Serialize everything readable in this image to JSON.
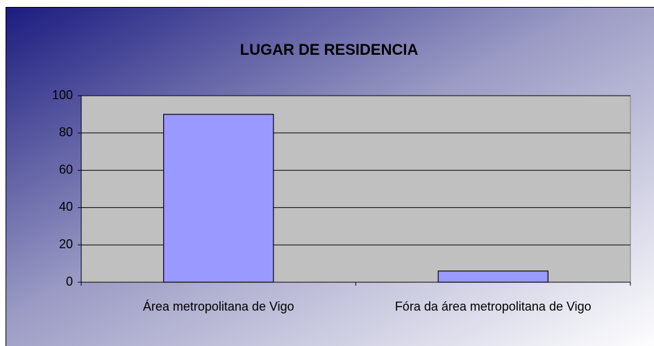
{
  "chart_data": {
    "type": "bar",
    "title": "LUGAR DE RESIDENCIA",
    "categories": [
      "Área metropolitana de Vigo",
      "Fóra da área metropolitana de Vigo"
    ],
    "values": [
      90,
      6
    ],
    "color": "#9999ff",
    "ylim": [
      0,
      100
    ],
    "yticks": [
      0,
      20,
      40,
      60,
      80,
      100
    ],
    "grid": true
  }
}
